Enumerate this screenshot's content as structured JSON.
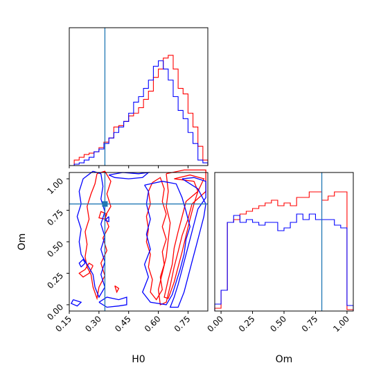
{
  "chart_data": {
    "type": "corner",
    "parameters": [
      "H0",
      "Om"
    ],
    "truths": {
      "H0": 0.33,
      "Om": 0.8
    },
    "colors": {
      "series1": "#ff0000",
      "series2": "#0000ff",
      "truth": "#1f77b4"
    },
    "axes": {
      "H0": {
        "range": [
          0.15,
          0.85
        ],
        "ticks": [
          "0.15",
          "0.30",
          "0.45",
          "0.60",
          "0.75"
        ],
        "tick_values": [
          0.15,
          0.3,
          0.45,
          0.6,
          0.75
        ],
        "label": "H0"
      },
      "Om": {
        "range": [
          -0.05,
          1.05
        ],
        "ticks": [
          "0.00",
          "0.25",
          "0.50",
          "0.75",
          "1.00"
        ],
        "tick_values": [
          0.0,
          0.25,
          0.5,
          0.75,
          1.0
        ],
        "label": "Om"
      }
    },
    "hist_H0": {
      "x_edges": [
        0.15,
        0.175,
        0.2,
        0.225,
        0.25,
        0.275,
        0.3,
        0.325,
        0.35,
        0.375,
        0.4,
        0.425,
        0.45,
        0.475,
        0.5,
        0.525,
        0.55,
        0.575,
        0.6,
        0.625,
        0.65,
        0.675,
        0.7,
        0.725,
        0.75,
        0.775,
        0.8,
        0.825,
        0.85
      ],
      "series": [
        {
          "color": "red",
          "values": [
            0.0,
            0.04,
            0.06,
            0.08,
            0.09,
            0.1,
            0.13,
            0.17,
            0.2,
            0.28,
            0.29,
            0.32,
            0.36,
            0.38,
            0.42,
            0.48,
            0.54,
            0.64,
            0.7,
            0.78,
            0.8,
            0.7,
            0.56,
            0.52,
            0.38,
            0.28,
            0.14,
            0.04
          ]
        },
        {
          "color": "blue",
          "values": [
            0.0,
            0.01,
            0.02,
            0.04,
            0.06,
            0.1,
            0.12,
            0.16,
            0.2,
            0.24,
            0.28,
            0.32,
            0.38,
            0.46,
            0.5,
            0.56,
            0.62,
            0.72,
            0.76,
            0.7,
            0.62,
            0.5,
            0.4,
            0.34,
            0.24,
            0.16,
            0.04,
            0.02
          ]
        }
      ],
      "ylim": [
        0,
        1.0
      ]
    },
    "hist_Om": {
      "x_edges": [
        -0.05,
        0.0,
        0.05,
        0.1,
        0.15,
        0.2,
        0.25,
        0.3,
        0.35,
        0.4,
        0.45,
        0.5,
        0.55,
        0.6,
        0.65,
        0.7,
        0.75,
        0.8,
        0.85,
        0.9,
        0.95,
        1.0,
        1.05
      ],
      "series": [
        {
          "color": "red",
          "values": [
            0.02,
            0.15,
            0.64,
            0.66,
            0.7,
            0.72,
            0.74,
            0.76,
            0.78,
            0.8,
            0.76,
            0.78,
            0.76,
            0.82,
            0.82,
            0.86,
            0.86,
            0.8,
            0.83,
            0.86,
            0.86,
            0.01
          ]
        },
        {
          "color": "blue",
          "values": [
            0.05,
            0.15,
            0.64,
            0.69,
            0.64,
            0.66,
            0.64,
            0.62,
            0.64,
            0.64,
            0.58,
            0.6,
            0.64,
            0.7,
            0.66,
            0.7,
            0.66,
            0.66,
            0.66,
            0.62,
            0.6,
            0.04
          ]
        }
      ],
      "ylim": [
        0,
        1.0
      ]
    },
    "contours_H0_Om": [
      {
        "color": "red",
        "points": [
          [
            0.29,
            1.04
          ],
          [
            0.33,
            1.06
          ],
          [
            0.36,
            0.98
          ],
          [
            0.34,
            0.88
          ],
          [
            0.36,
            0.78
          ],
          [
            0.33,
            0.7
          ],
          [
            0.35,
            0.62
          ],
          [
            0.32,
            0.53
          ],
          [
            0.34,
            0.43
          ],
          [
            0.31,
            0.33
          ],
          [
            0.33,
            0.23
          ],
          [
            0.3,
            0.14
          ],
          [
            0.29,
            0.05
          ],
          [
            0.27,
            0.14
          ],
          [
            0.26,
            0.24
          ],
          [
            0.24,
            0.3
          ],
          [
            0.23,
            0.38
          ],
          [
            0.24,
            0.48
          ],
          [
            0.23,
            0.58
          ],
          [
            0.25,
            0.68
          ],
          [
            0.24,
            0.78
          ],
          [
            0.26,
            0.88
          ],
          [
            0.28,
            0.96
          ],
          [
            0.29,
            1.04
          ]
        ]
      },
      {
        "color": "red",
        "points": [
          [
            0.27,
            0.31
          ],
          [
            0.25,
            0.25
          ],
          [
            0.22,
            0.22
          ],
          [
            0.2,
            0.25
          ],
          [
            0.23,
            0.28
          ],
          [
            0.25,
            0.33
          ],
          [
            0.27,
            0.31
          ]
        ]
      },
      {
        "color": "red",
        "points": [
          [
            0.34,
            0.72
          ],
          [
            0.33,
            0.68
          ],
          [
            0.3,
            0.69
          ],
          [
            0.31,
            0.74
          ],
          [
            0.34,
            0.72
          ]
        ]
      },
      {
        "color": "red",
        "points": [
          [
            0.57,
            0.97
          ],
          [
            0.61,
            1.01
          ],
          [
            0.63,
            0.92
          ],
          [
            0.62,
            0.82
          ],
          [
            0.64,
            0.72
          ],
          [
            0.62,
            0.62
          ],
          [
            0.64,
            0.52
          ],
          [
            0.62,
            0.42
          ],
          [
            0.63,
            0.32
          ],
          [
            0.61,
            0.22
          ],
          [
            0.62,
            0.12
          ],
          [
            0.59,
            0.04
          ],
          [
            0.56,
            0.1
          ],
          [
            0.57,
            0.2
          ],
          [
            0.55,
            0.3
          ],
          [
            0.56,
            0.4
          ],
          [
            0.54,
            0.5
          ],
          [
            0.55,
            0.6
          ],
          [
            0.54,
            0.7
          ],
          [
            0.56,
            0.8
          ],
          [
            0.55,
            0.9
          ],
          [
            0.57,
            0.97
          ]
        ]
      },
      {
        "color": "red",
        "points": [
          [
            0.64,
            1.04
          ],
          [
            0.73,
            1.07
          ],
          [
            0.84,
            1.07
          ],
          [
            0.84,
            0.9
          ],
          [
            0.77,
            0.8
          ],
          [
            0.75,
            0.68
          ],
          [
            0.72,
            0.55
          ],
          [
            0.7,
            0.42
          ],
          [
            0.68,
            0.3
          ],
          [
            0.66,
            0.15
          ],
          [
            0.64,
            0.02
          ],
          [
            0.61,
            0.0
          ],
          [
            0.6,
            0.12
          ],
          [
            0.62,
            0.25
          ],
          [
            0.64,
            0.38
          ],
          [
            0.65,
            0.52
          ],
          [
            0.66,
            0.65
          ],
          [
            0.64,
            0.78
          ],
          [
            0.65,
            0.9
          ],
          [
            0.64,
            1.04
          ]
        ]
      },
      {
        "color": "red",
        "points": [
          [
            0.68,
            1.0
          ],
          [
            0.76,
            1.03
          ],
          [
            0.83,
            1.0
          ],
          [
            0.8,
            0.9
          ],
          [
            0.74,
            0.82
          ],
          [
            0.72,
            0.7
          ],
          [
            0.7,
            0.58
          ],
          [
            0.68,
            0.45
          ],
          [
            0.67,
            0.32
          ],
          [
            0.65,
            0.2
          ],
          [
            0.63,
            0.06
          ],
          [
            0.65,
            0.05
          ],
          [
            0.68,
            0.18
          ],
          [
            0.7,
            0.3
          ],
          [
            0.72,
            0.42
          ],
          [
            0.74,
            0.55
          ],
          [
            0.76,
            0.68
          ],
          [
            0.78,
            0.8
          ],
          [
            0.8,
            0.9
          ],
          [
            0.78,
            0.98
          ],
          [
            0.68,
            1.0
          ]
        ]
      },
      {
        "color": "red",
        "points": [
          [
            0.38,
            0.15
          ],
          [
            0.4,
            0.13
          ],
          [
            0.39,
            0.1
          ],
          [
            0.38,
            0.15
          ]
        ]
      },
      {
        "color": "blue",
        "points": [
          [
            0.27,
            1.06
          ],
          [
            0.31,
            1.04
          ],
          [
            0.32,
            0.94
          ],
          [
            0.31,
            0.84
          ],
          [
            0.33,
            0.74
          ],
          [
            0.31,
            0.64
          ],
          [
            0.33,
            0.54
          ],
          [
            0.31,
            0.44
          ],
          [
            0.33,
            0.34
          ],
          [
            0.31,
            0.24
          ],
          [
            0.33,
            0.14
          ],
          [
            0.3,
            0.06
          ],
          [
            0.28,
            0.14
          ],
          [
            0.27,
            0.24
          ],
          [
            0.24,
            0.32
          ],
          [
            0.21,
            0.4
          ],
          [
            0.2,
            0.5
          ],
          [
            0.21,
            0.6
          ],
          [
            0.19,
            0.7
          ],
          [
            0.21,
            0.8
          ],
          [
            0.2,
            0.9
          ],
          [
            0.22,
            1.0
          ],
          [
            0.27,
            1.06
          ]
        ]
      },
      {
        "color": "blue",
        "points": [
          [
            0.17,
            0.04
          ],
          [
            0.21,
            0.02
          ],
          [
            0.19,
            -0.01
          ],
          [
            0.16,
            0.01
          ],
          [
            0.17,
            0.04
          ]
        ]
      },
      {
        "color": "blue",
        "points": [
          [
            0.21,
            0.3
          ],
          [
            0.23,
            0.33
          ],
          [
            0.22,
            0.36
          ],
          [
            0.2,
            0.33
          ],
          [
            0.21,
            0.3
          ]
        ]
      },
      {
        "color": "blue",
        "points": [
          [
            0.35,
            0.7
          ],
          [
            0.35,
            0.66
          ],
          [
            0.33,
            0.67
          ],
          [
            0.35,
            0.7
          ]
        ]
      },
      {
        "color": "blue",
        "points": [
          [
            0.3,
            0.02
          ],
          [
            0.34,
            0.06
          ],
          [
            0.4,
            0.04
          ],
          [
            0.44,
            0.06
          ],
          [
            0.44,
            0.0
          ],
          [
            0.4,
            -0.01
          ],
          [
            0.34,
            -0.02
          ],
          [
            0.3,
            0.02
          ]
        ]
      },
      {
        "color": "blue",
        "points": [
          [
            0.35,
            1.03
          ],
          [
            0.42,
            1.05
          ],
          [
            0.5,
            1.04
          ],
          [
            0.55,
            1.05
          ],
          [
            0.52,
            1.01
          ],
          [
            0.45,
            1.0
          ],
          [
            0.38,
            1.01
          ],
          [
            0.35,
            1.03
          ]
        ]
      },
      {
        "color": "blue",
        "points": [
          [
            0.53,
            0.95
          ],
          [
            0.62,
            0.98
          ],
          [
            0.69,
            0.96
          ],
          [
            0.72,
            0.85
          ],
          [
            0.74,
            0.74
          ],
          [
            0.76,
            0.62
          ],
          [
            0.74,
            0.52
          ],
          [
            0.73,
            0.4
          ],
          [
            0.71,
            0.28
          ],
          [
            0.69,
            0.18
          ],
          [
            0.67,
            0.08
          ],
          [
            0.64,
            0.0
          ],
          [
            0.56,
            0.02
          ],
          [
            0.52,
            0.1
          ],
          [
            0.55,
            0.22
          ],
          [
            0.53,
            0.32
          ],
          [
            0.56,
            0.44
          ],
          [
            0.54,
            0.56
          ],
          [
            0.56,
            0.68
          ],
          [
            0.54,
            0.8
          ],
          [
            0.55,
            0.9
          ],
          [
            0.53,
            0.95
          ]
        ]
      },
      {
        "color": "blue",
        "points": [
          [
            0.72,
            1.0
          ],
          [
            0.78,
            1.01
          ],
          [
            0.84,
            0.98
          ],
          [
            0.84,
            0.85
          ],
          [
            0.8,
            0.76
          ],
          [
            0.78,
            0.64
          ],
          [
            0.76,
            0.52
          ],
          [
            0.74,
            0.4
          ],
          [
            0.72,
            0.28
          ],
          [
            0.7,
            0.16
          ],
          [
            0.68,
            0.06
          ],
          [
            0.66,
            -0.02
          ],
          [
            0.7,
            -0.02
          ],
          [
            0.73,
            0.1
          ],
          [
            0.75,
            0.22
          ],
          [
            0.77,
            0.34
          ],
          [
            0.79,
            0.46
          ],
          [
            0.81,
            0.58
          ],
          [
            0.83,
            0.7
          ],
          [
            0.84,
            0.8
          ],
          [
            0.8,
            0.92
          ],
          [
            0.72,
            1.0
          ]
        ]
      }
    ]
  }
}
